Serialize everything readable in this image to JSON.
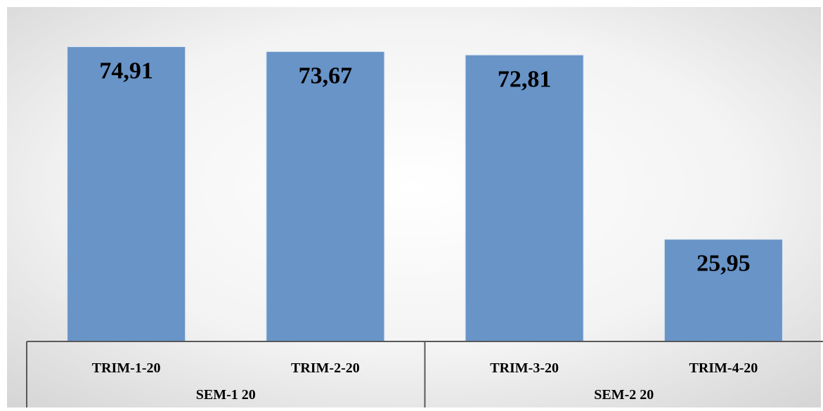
{
  "chart_data": {
    "type": "bar",
    "categories": [
      "TRIM-1-20",
      "TRIM-2-20",
      "TRIM-3-20",
      "TRIM-4-20"
    ],
    "values": [
      74.91,
      73.67,
      72.81,
      25.95
    ],
    "value_labels": [
      "74,91",
      "73,67",
      "72,81",
      "25,95"
    ],
    "groups": [
      {
        "label": "SEM-1 20",
        "categories": [
          "TRIM-1-20",
          "TRIM-2-20"
        ]
      },
      {
        "label": "SEM-2 20",
        "categories": [
          "TRIM-3-20",
          "TRIM-4-20"
        ]
      }
    ],
    "ylim": [
      0,
      85
    ],
    "grid": false,
    "legend": "none",
    "colors": {
      "bar": "#6894c8",
      "bar_edge": "#d8e2f0",
      "axis": "#595959",
      "text": "#000000",
      "background_center": "#ffffff",
      "background_edge": "#d4d4d4"
    }
  }
}
